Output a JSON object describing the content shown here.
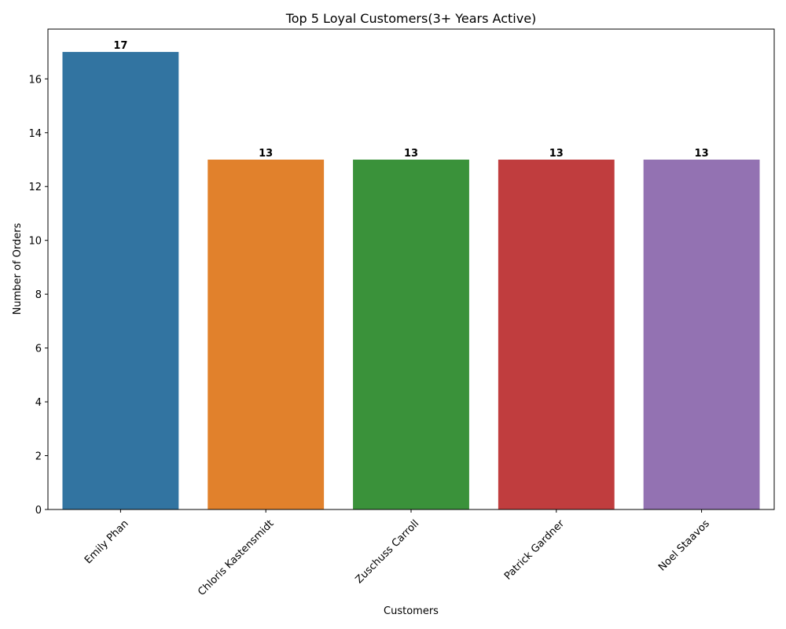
{
  "chart_data": {
    "type": "bar",
    "title": "Top 5 Loyal Customers(3+ Years Active)",
    "xlabel": "Customers",
    "ylabel": "Number of Orders",
    "categories": [
      "Emily Phan",
      "Chloris Kastensmidt",
      "Zuschuss Carroll",
      "Patrick Gardner",
      "Noel Staavos"
    ],
    "values": [
      17,
      13,
      13,
      13,
      13
    ],
    "data_labels": [
      "17",
      "13",
      "13",
      "13",
      "13"
    ],
    "colors": [
      "#3274a1",
      "#e1812c",
      "#3a923a",
      "#c03d3e",
      "#9372b2"
    ],
    "ylim": [
      0,
      17.85
    ],
    "yticks": [
      0,
      2,
      4,
      6,
      8,
      10,
      12,
      14,
      16
    ],
    "grid": false,
    "legend": "none"
  }
}
